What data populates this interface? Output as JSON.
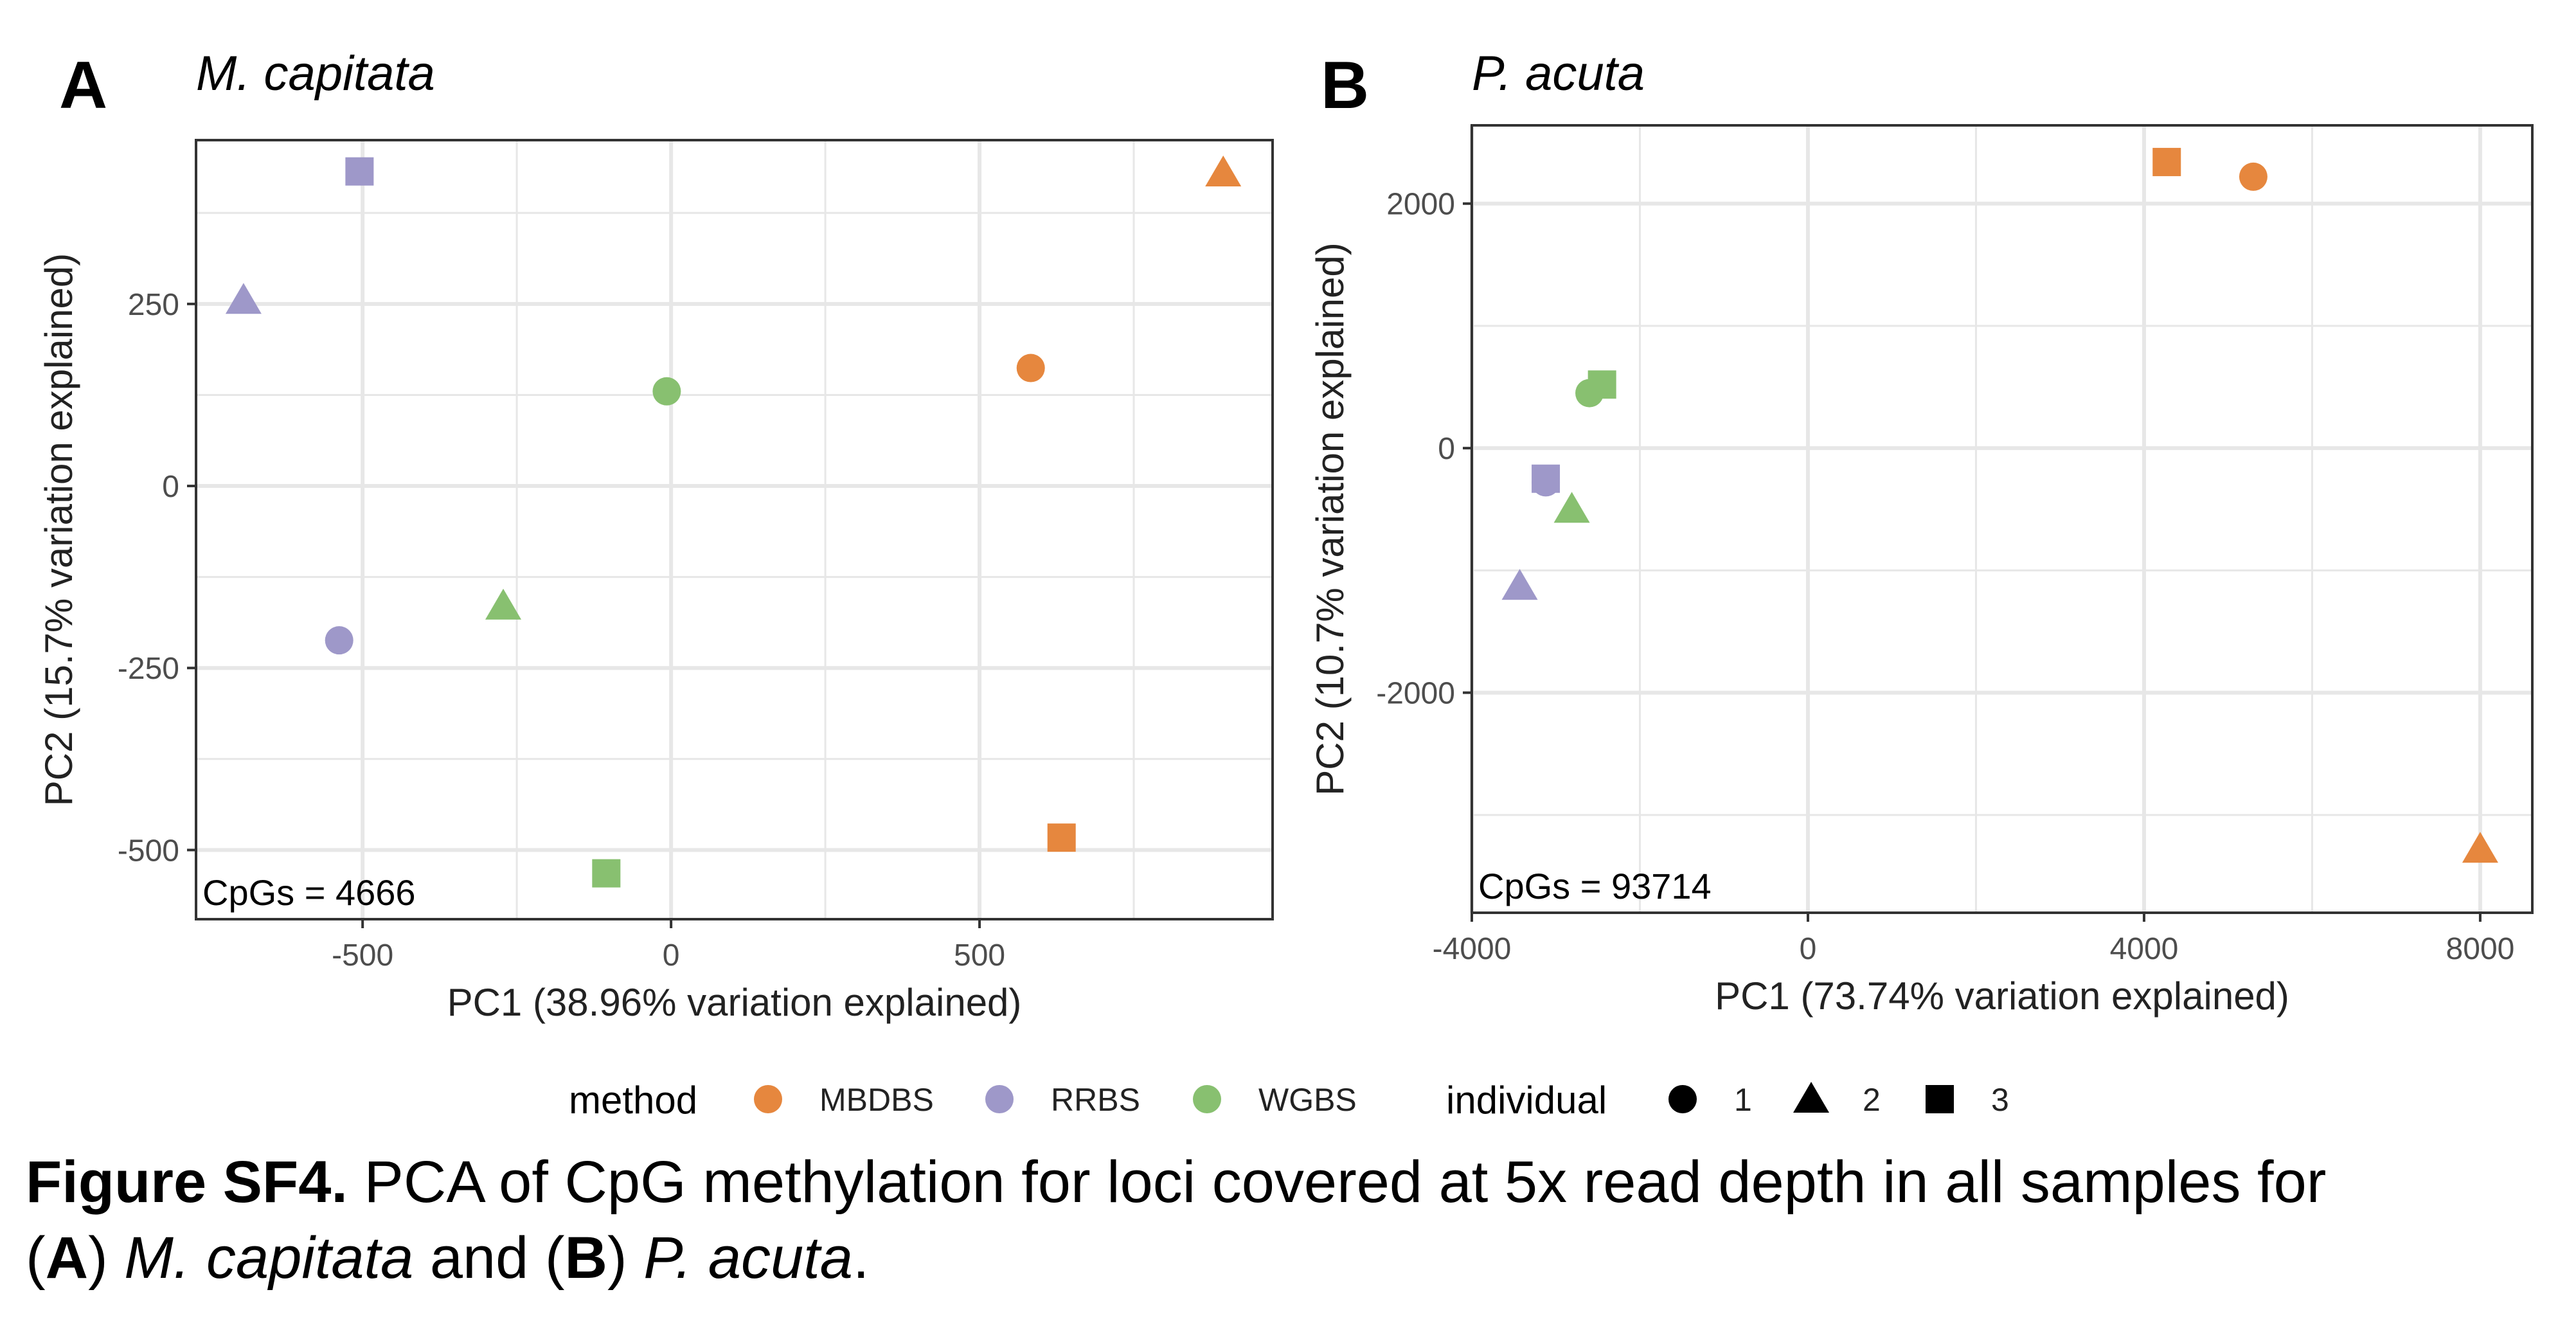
{
  "colors": {
    "MBDBS": "#E6873E",
    "RRBS": "#9E98C9",
    "WGBS": "#88C070",
    "grid": "#E7E7E7",
    "panel_border": "#333333",
    "tick_text": "#4D4D4D"
  },
  "chart_data": [
    {
      "type": "scatter",
      "panel_letter": "A",
      "title": "M. capitata",
      "xlabel": "PC1 (38.96% variation explained)",
      "ylabel": "PC2 (15.7% variation explained)",
      "xlim": [
        -770,
        975
      ],
      "ylim": [
        -595,
        475
      ],
      "xticks": [
        -500,
        0,
        500
      ],
      "yticks": [
        -500,
        -250,
        0,
        250
      ],
      "xminor": [
        -250,
        250,
        750
      ],
      "yminor": [
        -375,
        -125,
        125,
        375
      ],
      "xtick_labels": [
        "-500",
        "0",
        "500"
      ],
      "ytick_labels": [
        "-500",
        "-250",
        "0",
        "250"
      ],
      "annotation": "CpGs = 4666",
      "grid": true,
      "points": [
        {
          "method": "MBDBS",
          "individual": "1",
          "x": 583,
          "y": 162
        },
        {
          "method": "MBDBS",
          "individual": "2",
          "x": 895,
          "y": 430
        },
        {
          "method": "MBDBS",
          "individual": "3",
          "x": 633,
          "y": -483
        },
        {
          "method": "RRBS",
          "individual": "1",
          "x": -538,
          "y": -212
        },
        {
          "method": "RRBS",
          "individual": "2",
          "x": -693,
          "y": 255
        },
        {
          "method": "RRBS",
          "individual": "3",
          "x": -505,
          "y": 432
        },
        {
          "method": "WGBS",
          "individual": "1",
          "x": -7,
          "y": 130
        },
        {
          "method": "WGBS",
          "individual": "2",
          "x": -272,
          "y": -165
        },
        {
          "method": "WGBS",
          "individual": "3",
          "x": -105,
          "y": -532
        }
      ]
    },
    {
      "type": "scatter",
      "panel_letter": "B",
      "title": "P. acuta",
      "xlabel": "PC1 (73.74% variation explained)",
      "ylabel": "PC2 (10.7% variation explained)",
      "xlim": [
        -4000,
        8620
      ],
      "ylim": [
        -3800,
        2640
      ],
      "xticks": [
        -4000,
        0,
        4000,
        8000
      ],
      "yticks": [
        -2000,
        0,
        2000
      ],
      "xminor": [
        -2000,
        2000,
        6000
      ],
      "yminor": [
        -3000,
        -1000,
        1000
      ],
      "xtick_labels": [
        "-4000",
        "0",
        "4000",
        "8000"
      ],
      "ytick_labels": [
        "-2000",
        "0",
        "2000"
      ],
      "annotation": "CpGs = 93714",
      "grid": true,
      "points": [
        {
          "method": "MBDBS",
          "individual": "1",
          "x": 5300,
          "y": 2220
        },
        {
          "method": "MBDBS",
          "individual": "2",
          "x": 8000,
          "y": -3280
        },
        {
          "method": "MBDBS",
          "individual": "3",
          "x": 4270,
          "y": 2340
        },
        {
          "method": "RRBS",
          "individual": "1",
          "x": -3120,
          "y": -280
        },
        {
          "method": "RRBS",
          "individual": "2",
          "x": -3430,
          "y": -1130
        },
        {
          "method": "RRBS",
          "individual": "3",
          "x": -3120,
          "y": -250
        },
        {
          "method": "WGBS",
          "individual": "1",
          "x": -2600,
          "y": 450
        },
        {
          "method": "WGBS",
          "individual": "2",
          "x": -2810,
          "y": -500
        },
        {
          "method": "WGBS",
          "individual": "3",
          "x": -2450,
          "y": 520
        }
      ]
    }
  ],
  "legend": {
    "method_title": "method",
    "method_items": [
      "MBDBS",
      "RRBS",
      "WGBS"
    ],
    "individual_title": "individual",
    "individual_items": [
      "1",
      "2",
      "3"
    ],
    "individual_shapes": [
      "circle",
      "triangle",
      "square"
    ]
  },
  "caption": {
    "label": "Figure SF4.",
    "text_line1": " PCA of CpG methylation for loci covered at 5x read depth in all samples for",
    "open_paren_1": "(",
    "panel_a": "A",
    "close_paren_1": ") ",
    "species_a": "M. capitata",
    "and_text": " and (",
    "panel_b": "B",
    "close_paren_2": ") ",
    "species_b": "P. acuta",
    "end": "."
  }
}
